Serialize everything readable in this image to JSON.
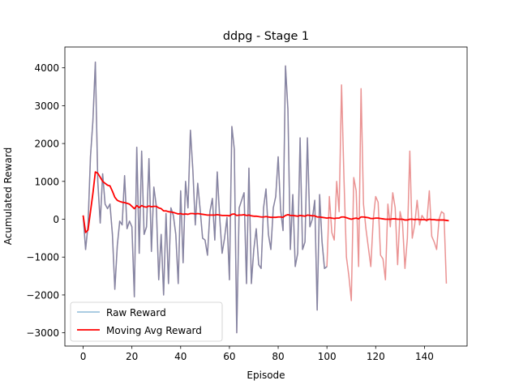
{
  "chart_data": {
    "type": "line",
    "title": "ddpg - Stage 1",
    "xlabel": "Episode",
    "ylabel": "Acumulated Reward",
    "xlim": [
      -7.5,
      157.5
    ],
    "ylim": [
      -3350,
      4550
    ],
    "xticks": [
      0,
      20,
      40,
      60,
      80,
      100,
      120,
      140
    ],
    "yticks": [
      -3000,
      -2000,
      -1000,
      0,
      1000,
      2000,
      3000,
      4000
    ],
    "grid": false,
    "legend_position": "lower-left",
    "series": [
      {
        "name": "Raw Reward",
        "color": "#d62728",
        "overlay_color": "#1f77b4",
        "overlay_until_episode": 100,
        "values": [
          100,
          -800,
          -150,
          1650,
          2600,
          4150,
          1000,
          -100,
          1200,
          400,
          280,
          400,
          -400,
          -1850,
          -700,
          -50,
          -150,
          1150,
          -250,
          -50,
          -200,
          -2050,
          1900,
          -900,
          1800,
          -400,
          -200,
          1600,
          -850,
          850,
          350,
          -1600,
          -400,
          -2000,
          150,
          -1700,
          300,
          100,
          -400,
          -1700,
          750,
          -1150,
          1000,
          300,
          2350,
          1300,
          -150,
          950,
          250,
          -500,
          -550,
          -950,
          200,
          550,
          -550,
          1250,
          50,
          -900,
          -500,
          50,
          -1600,
          2450,
          1850,
          -3000,
          300,
          500,
          700,
          -1700,
          1350,
          -1700,
          -800,
          -250,
          -1200,
          -1300,
          300,
          800,
          -400,
          -800,
          300,
          600,
          1650,
          250,
          -300,
          4050,
          2900,
          -800,
          650,
          -1250,
          -900,
          2150,
          -800,
          -600,
          2150,
          -200,
          0,
          500,
          -2400,
          650,
          -600,
          -1300,
          -1250,
          600,
          -350,
          -550,
          1000,
          200,
          3550,
          1050,
          -1000,
          -1500,
          -2150,
          1100,
          750,
          -1250,
          3450,
          400,
          -250,
          -750,
          -1250,
          0,
          600,
          450,
          -950,
          -1050,
          -1600,
          400,
          -200,
          700,
          300,
          -1200,
          200,
          -100,
          -1300,
          -500,
          1800,
          -500,
          -150,
          500,
          -150,
          100,
          0,
          -50,
          750,
          -450,
          -600,
          -800,
          0,
          200,
          150,
          -1700
        ]
      },
      {
        "name": "Moving Avg Reward",
        "color": "#ff0000",
        "values": [
          100,
          -350,
          -283,
          200,
          686,
          1250,
          1214,
          1110,
          1000,
          950,
          900,
          880,
          740,
          580,
          500,
          470,
          450,
          440,
          420,
          400,
          340,
          280,
          360,
          310,
          360,
          330,
          320,
          350,
          330,
          340,
          340,
          300,
          280,
          220,
          220,
          200,
          190,
          180,
          160,
          140,
          150,
          130,
          140,
          130,
          150,
          150,
          140,
          150,
          140,
          130,
          120,
          110,
          110,
          110,
          110,
          120,
          110,
          100,
          100,
          100,
          90,
          130,
          140,
          100,
          110,
          110,
          120,
          100,
          110,
          90,
          80,
          80,
          70,
          60,
          60,
          70,
          60,
          50,
          50,
          50,
          60,
          60,
          50,
          100,
          120,
          100,
          100,
          90,
          80,
          100,
          90,
          80,
          110,
          100,
          90,
          90,
          60,
          60,
          50,
          40,
          30,
          40,
          30,
          20,
          30,
          30,
          60,
          60,
          40,
          20,
          0,
          20,
          30,
          10,
          60,
          60,
          50,
          40,
          20,
          20,
          30,
          30,
          20,
          10,
          0,
          0,
          0,
          10,
          10,
          0,
          0,
          0,
          -20,
          -20,
          0,
          0,
          -10,
          0,
          -10,
          -10,
          -10,
          -20,
          0,
          -10,
          -10,
          -20,
          -20,
          -20,
          -20,
          -30,
          -40
        ]
      }
    ]
  }
}
